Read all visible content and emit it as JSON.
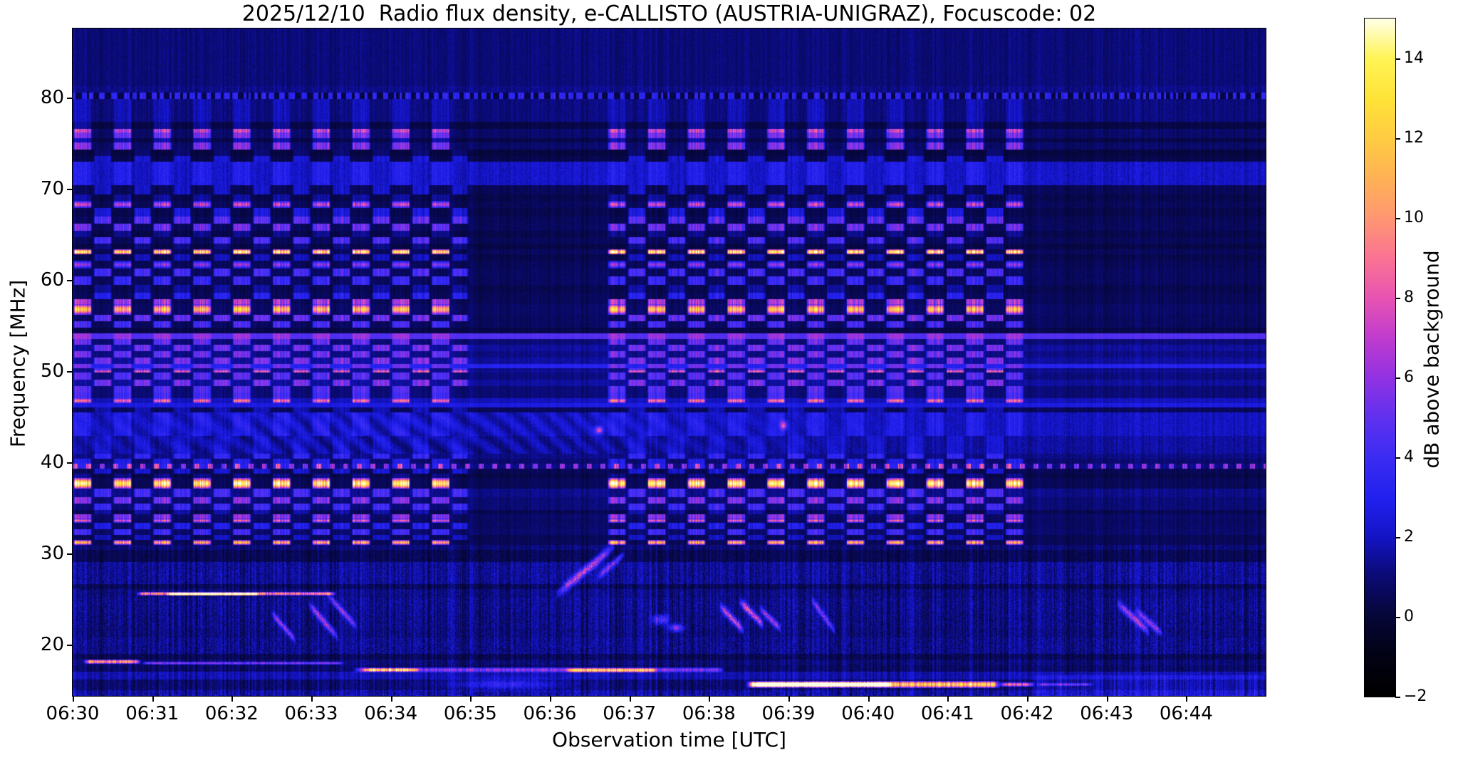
{
  "chart_data": {
    "type": "heatmap",
    "subtype": "radio-spectrogram",
    "title": "2025/12/10  Radio flux density, e-CALLISTO (AUSTRIA-UNIGRAZ), Focuscode: 02",
    "xlabel": "Observation time [UTC]",
    "ylabel": "Frequency [MHz]",
    "colorbar_label": "dB above background",
    "x_ticks": [
      "06:30",
      "06:31",
      "06:32",
      "06:33",
      "06:34",
      "06:35",
      "06:36",
      "06:37",
      "06:38",
      "06:39",
      "06:40",
      "06:41",
      "06:42",
      "06:43",
      "06:44"
    ],
    "y_ticks": [
      "80",
      "70",
      "60",
      "50",
      "40",
      "30",
      "20"
    ],
    "y_tick_values": [
      80,
      70,
      60,
      50,
      40,
      30,
      20
    ],
    "colorbar_ticks": [
      "14",
      "12",
      "10",
      "8",
      "6",
      "4",
      "2",
      "0",
      "−2"
    ],
    "colorbar_tick_values": [
      14,
      12,
      10,
      8,
      6,
      4,
      2,
      0,
      -2
    ],
    "time_range_utc": [
      "06:30:00",
      "06:45:00"
    ],
    "time_span_s": 900,
    "freq_range_mhz": [
      14.4,
      87.6
    ],
    "value_range_db": [
      -2,
      15
    ],
    "grid": false,
    "legend_position": "right-colorbar",
    "colormap_stops": [
      [
        0.0,
        "#000000"
      ],
      [
        0.06,
        "#020214"
      ],
      [
        0.12,
        "#06063a"
      ],
      [
        0.18,
        "#0b0b78"
      ],
      [
        0.235,
        "#1414c6"
      ],
      [
        0.29,
        "#2120ee"
      ],
      [
        0.353,
        "#3c2cf2"
      ],
      [
        0.412,
        "#6131ef"
      ],
      [
        0.47,
        "#9232e2"
      ],
      [
        0.53,
        "#c13cce"
      ],
      [
        0.588,
        "#e854b2"
      ],
      [
        0.647,
        "#fa7393"
      ],
      [
        0.706,
        "#ff9772"
      ],
      [
        0.765,
        "#ffb255"
      ],
      [
        0.824,
        "#ffcc42"
      ],
      [
        0.882,
        "#ffe338"
      ],
      [
        0.941,
        "#fff455"
      ],
      [
        1.0,
        "#ffffe8"
      ]
    ],
    "stripe_modulation": {
      "period_s": 30,
      "on_windows_s": [
        [
          0,
          298
        ],
        [
          403,
          718
        ]
      ],
      "phaseA_duty": [
        0.01,
        0.48
      ],
      "phaseB_duty": [
        0.52,
        0.98
      ]
    },
    "band_format": "[freq_hi_MHz, freq_lo_MHz, base_dB, pixel_noise_dB, column_noise_factor, stripe_phase(0=none,1=A,2=B), stripe_amp_dB, kind(0=plain,1=dashed80,2=dotline,3=wavy), profile(0=flat,1=peaked)]",
    "bands": [
      [
        87.6,
        81.3,
        1.05,
        0.3,
        0.45,
        0,
        0,
        0,
        0
      ],
      [
        81.3,
        80.6,
        1.25,
        0.45,
        0.55,
        0,
        0,
        0,
        0
      ],
      [
        80.6,
        79.9,
        0.3,
        0.35,
        0.4,
        0,
        2.6,
        1,
        0
      ],
      [
        79.9,
        77.4,
        1.1,
        0.32,
        0.5,
        1,
        0.8,
        0,
        0
      ],
      [
        77.4,
        76.6,
        0.25,
        0.2,
        0.25,
        1,
        1.2,
        0,
        0
      ],
      [
        76.6,
        76.2,
        0.85,
        0.3,
        0.45,
        1,
        6.3,
        0,
        0
      ],
      [
        76.2,
        75.6,
        0.8,
        0.3,
        0.45,
        1,
        4.6,
        0,
        0
      ],
      [
        75.6,
        75.1,
        0.3,
        0.22,
        0.3,
        1,
        1.5,
        0,
        0
      ],
      [
        75.1,
        74.3,
        0.8,
        0.3,
        0.45,
        1,
        4.8,
        0,
        0
      ],
      [
        74.3,
        73.6,
        0.15,
        0.18,
        0.25,
        2,
        0.8,
        0,
        0
      ],
      [
        73.6,
        73.0,
        0.35,
        0.25,
        0.35,
        2,
        2.0,
        0,
        0
      ],
      [
        73.0,
        70.4,
        2.1,
        0.5,
        0.55,
        1,
        0.9,
        0,
        0
      ],
      [
        70.4,
        69.4,
        0.55,
        0.3,
        0.45,
        2,
        1.6,
        0,
        0
      ],
      [
        69.4,
        68.7,
        0.35,
        0.25,
        0.35,
        1,
        1.2,
        0,
        0
      ],
      [
        68.7,
        67.9,
        0.55,
        0.3,
        0.4,
        1,
        6.8,
        0,
        1
      ],
      [
        67.9,
        67.0,
        0.35,
        0.25,
        0.4,
        2,
        2.2,
        0,
        0
      ],
      [
        67.0,
        66.2,
        0.55,
        0.28,
        0.4,
        2,
        4.2,
        0,
        0
      ],
      [
        66.2,
        65.4,
        0.6,
        0.28,
        0.4,
        1,
        4.6,
        0,
        0
      ],
      [
        65.4,
        64.7,
        0.35,
        0.22,
        0.35,
        1,
        1.0,
        0,
        0
      ],
      [
        64.7,
        64.0,
        0.55,
        0.25,
        0.38,
        2,
        3.8,
        0,
        0
      ],
      [
        64.0,
        63.4,
        0.25,
        0.2,
        0.3,
        2,
        1.0,
        0,
        0
      ],
      [
        63.4,
        62.8,
        0.6,
        0.28,
        0.4,
        1,
        13.2,
        0,
        1
      ],
      [
        62.8,
        62.1,
        0.35,
        0.22,
        0.35,
        2,
        1.6,
        0,
        0
      ],
      [
        62.1,
        61.3,
        0.55,
        0.28,
        0.4,
        1,
        5.4,
        0,
        1
      ],
      [
        61.3,
        60.4,
        0.65,
        0.3,
        0.42,
        2,
        3.6,
        0,
        0
      ],
      [
        60.4,
        59.5,
        0.65,
        0.3,
        0.42,
        1,
        3.2,
        0,
        0
      ],
      [
        59.5,
        58.6,
        0.4,
        0.25,
        0.38,
        2,
        1.2,
        0,
        0
      ],
      [
        58.6,
        57.9,
        0.55,
        0.26,
        0.4,
        2,
        2.6,
        0,
        0
      ],
      [
        57.9,
        57.4,
        0.55,
        0.26,
        0.4,
        1,
        6.0,
        0,
        0
      ],
      [
        57.4,
        56.2,
        0.75,
        0.3,
        0.42,
        1,
        10.8,
        0,
        1
      ],
      [
        56.2,
        55.5,
        0.65,
        0.28,
        0.42,
        2,
        4.4,
        0,
        0
      ],
      [
        55.5,
        54.8,
        0.65,
        0.28,
        0.42,
        1,
        3.6,
        0,
        0
      ],
      [
        54.8,
        54.2,
        0.3,
        0.22,
        0.32,
        0,
        0,
        0,
        0
      ],
      [
        54.2,
        53.5,
        4.6,
        0.3,
        0.3,
        1,
        1.6,
        0,
        0
      ],
      [
        53.5,
        52.9,
        1.0,
        0.28,
        0.4,
        1,
        4.0,
        0,
        0
      ],
      [
        52.9,
        52.2,
        1.5,
        0.3,
        0.42,
        2,
        3.8,
        0,
        0
      ],
      [
        52.2,
        51.5,
        1.2,
        0.3,
        0.42,
        1,
        4.0,
        0,
        0
      ],
      [
        51.5,
        50.8,
        1.5,
        0.3,
        0.42,
        2,
        4.0,
        0,
        0
      ],
      [
        50.8,
        50.35,
        3.1,
        0.28,
        0.35,
        1,
        2.2,
        0,
        0
      ],
      [
        50.35,
        50.1,
        1.2,
        0.26,
        0.38,
        2,
        3.4,
        0,
        0
      ],
      [
        50.1,
        49.85,
        1.4,
        0.26,
        0.38,
        2,
        6.4,
        0,
        0
      ],
      [
        49.85,
        49.1,
        1.1,
        0.28,
        0.4,
        1,
        3.6,
        0,
        0
      ],
      [
        49.1,
        48.35,
        1.5,
        0.3,
        0.42,
        2,
        4.0,
        0,
        0
      ],
      [
        48.35,
        47.65,
        1.0,
        0.28,
        0.4,
        1,
        3.6,
        0,
        0
      ],
      [
        47.65,
        47.05,
        1.0,
        0.28,
        0.4,
        1,
        3.2,
        0,
        0
      ],
      [
        47.05,
        46.5,
        1.9,
        0.28,
        0.38,
        1,
        7.0,
        0,
        1
      ],
      [
        46.5,
        46.05,
        2.6,
        0.26,
        0.32,
        0,
        0,
        0,
        0
      ],
      [
        46.05,
        45.5,
        0.6,
        0.26,
        0.38,
        2,
        1.2,
        0,
        0
      ],
      [
        45.5,
        42.9,
        2.0,
        0.45,
        0.5,
        1,
        1.0,
        3,
        0
      ],
      [
        42.9,
        41.0,
        1.55,
        0.45,
        0.52,
        2,
        0.8,
        3,
        0
      ],
      [
        41.0,
        40.4,
        1.2,
        0.3,
        0.45,
        2,
        2.4,
        0,
        0
      ],
      [
        40.4,
        39.9,
        0.9,
        0.28,
        0.42,
        1,
        2.0,
        0,
        0
      ],
      [
        39.9,
        39.35,
        1.2,
        0.3,
        0.45,
        1,
        2.0,
        2,
        0
      ],
      [
        39.35,
        38.75,
        0.5,
        0.26,
        0.42,
        2,
        1.8,
        0,
        0
      ],
      [
        38.75,
        38.3,
        0.3,
        0.24,
        0.38,
        1,
        1.0,
        0,
        0
      ],
      [
        38.3,
        37.1,
        0.55,
        0.28,
        0.4,
        1,
        13.6,
        0,
        1
      ],
      [
        37.1,
        36.2,
        1.25,
        0.32,
        0.48,
        2,
        3.0,
        0,
        0
      ],
      [
        36.2,
        35.5,
        1.0,
        0.3,
        0.45,
        1,
        4.6,
        0,
        0
      ],
      [
        35.5,
        34.8,
        1.0,
        0.3,
        0.45,
        2,
        3.0,
        0,
        0
      ],
      [
        34.8,
        34.3,
        0.45,
        0.26,
        0.4,
        2,
        1.2,
        0,
        0
      ],
      [
        34.3,
        33.85,
        0.8,
        0.28,
        0.42,
        1,
        5.0,
        0,
        0
      ],
      [
        33.85,
        33.4,
        0.7,
        0.28,
        0.42,
        1,
        7.6,
        0,
        1
      ],
      [
        33.4,
        32.7,
        0.75,
        0.3,
        0.45,
        2,
        2.2,
        0,
        0
      ],
      [
        32.7,
        32.05,
        0.85,
        0.3,
        0.45,
        1,
        3.2,
        0,
        0
      ],
      [
        32.05,
        31.5,
        0.5,
        0.26,
        0.42,
        2,
        1.5,
        0,
        0
      ],
      [
        31.5,
        30.95,
        0.55,
        0.26,
        0.4,
        1,
        10.5,
        0,
        1
      ],
      [
        30.95,
        30.4,
        1.0,
        0.5,
        0.7,
        0,
        0,
        0,
        0
      ],
      [
        30.4,
        29.1,
        0.5,
        0.45,
        0.7,
        0,
        0,
        0,
        0
      ],
      [
        29.1,
        26.7,
        1.45,
        0.8,
        1.0,
        0,
        0,
        0,
        0
      ],
      [
        26.7,
        26.1,
        0.6,
        0.6,
        1.0,
        0,
        0,
        0,
        0
      ],
      [
        26.1,
        25.2,
        1.15,
        0.7,
        1.0,
        0,
        0,
        0,
        0
      ],
      [
        25.2,
        23.6,
        1.3,
        0.8,
        1.1,
        0,
        0,
        0,
        0
      ],
      [
        23.6,
        21.8,
        1.2,
        0.8,
        1.1,
        0,
        0,
        0,
        0
      ],
      [
        21.8,
        20.8,
        1.1,
        0.7,
        1.0,
        0,
        0,
        0,
        0
      ],
      [
        20.8,
        19.0,
        1.3,
        0.9,
        1.0,
        0,
        0,
        0,
        0
      ],
      [
        19.0,
        18.35,
        0.55,
        0.5,
        0.8,
        0,
        0,
        0,
        0
      ],
      [
        18.35,
        17.75,
        1.0,
        0.6,
        0.9,
        0,
        0,
        0,
        0
      ],
      [
        17.75,
        17.05,
        0.8,
        0.5,
        0.9,
        0,
        0,
        0,
        0
      ],
      [
        17.05,
        16.2,
        1.8,
        0.5,
        0.9,
        0,
        0,
        0,
        0
      ],
      [
        16.2,
        15.0,
        0.9,
        0.5,
        1.0,
        0,
        0,
        0,
        0
      ],
      [
        15.0,
        14.4,
        1.6,
        1.0,
        1.2,
        0,
        0,
        0,
        0
      ]
    ],
    "features": [
      {
        "k": "hline",
        "t0": 48,
        "t1": 199,
        "f0": 25.85,
        "f1": 25.35,
        "a": 8.5
      },
      {
        "k": "hline",
        "t0": 70,
        "t1": 142,
        "f0": 25.75,
        "f1": 25.4,
        "a": 11.0
      },
      {
        "k": "hline",
        "t0": 8,
        "t1": 52,
        "f0": 18.4,
        "f1": 17.85,
        "a": 9.8
      },
      {
        "k": "hline",
        "t0": 52,
        "t1": 205,
        "f0": 18.2,
        "f1": 17.8,
        "a": 4.6
      },
      {
        "k": "hline",
        "t0": 212,
        "t1": 492,
        "f0": 17.55,
        "f1": 16.95,
        "a": 5.2
      },
      {
        "k": "hline",
        "t0": 218,
        "t1": 262,
        "f0": 17.5,
        "f1": 17.0,
        "a": 7.6
      },
      {
        "k": "hline",
        "t0": 372,
        "t1": 442,
        "f0": 17.45,
        "f1": 16.95,
        "a": 7.2
      },
      {
        "k": "blob",
        "t": 325,
        "f": 15.7,
        "a": 2.8,
        "wt": 38,
        "wf": 0.55
      },
      {
        "k": "hline",
        "t0": 508,
        "t1": 700,
        "f0": 16.05,
        "f1": 15.2,
        "a": 11.5
      },
      {
        "k": "hline",
        "t0": 512,
        "t1": 618,
        "f0": 15.9,
        "f1": 15.35,
        "a": 14.2
      },
      {
        "k": "hline",
        "t0": 698,
        "t1": 726,
        "f0": 15.95,
        "f1": 15.35,
        "a": 7.5
      },
      {
        "k": "hline",
        "t0": 726,
        "t1": 770,
        "f0": 15.85,
        "f1": 15.45,
        "a": 4.0
      },
      {
        "k": "rect",
        "t0": 722,
        "t1": 900,
        "f0": 16.6,
        "f1": 14.4,
        "a": 1.1
      },
      {
        "k": "diag",
        "t0": 150,
        "f0": 23.5,
        "t1": 168,
        "f1": 20.5,
        "a": 4.5,
        "w": 0.4
      },
      {
        "k": "diag",
        "t0": 178,
        "f0": 24.5,
        "t1": 200,
        "f1": 20.8,
        "a": 5.0,
        "w": 0.45
      },
      {
        "k": "diag",
        "t0": 192,
        "f0": 25.5,
        "t1": 214,
        "f1": 22.0,
        "a": 4.5,
        "w": 0.4
      },
      {
        "k": "diag",
        "t0": 365,
        "f0": 25.6,
        "t1": 408,
        "f1": 30.8,
        "a": 5.5,
        "w": 0.5
      },
      {
        "k": "diag",
        "t0": 396,
        "f0": 27.5,
        "t1": 416,
        "f1": 30.0,
        "a": 4.0,
        "w": 0.4
      },
      {
        "k": "blob",
        "t": 397,
        "f": 43.6,
        "a": 6.0,
        "wt": 3,
        "wf": 0.4
      },
      {
        "k": "blob",
        "t": 536,
        "f": 44.1,
        "a": 5.0,
        "wt": 2.5,
        "wf": 0.45
      },
      {
        "k": "diag",
        "t0": 488,
        "f0": 24.3,
        "t1": 506,
        "f1": 21.6,
        "a": 6.0,
        "w": 0.45
      },
      {
        "k": "diag",
        "t0": 503,
        "f0": 24.8,
        "t1": 521,
        "f1": 22.2,
        "a": 6.5,
        "w": 0.45
      },
      {
        "k": "diag",
        "t0": 518,
        "f0": 24.0,
        "t1": 534,
        "f1": 21.8,
        "a": 5.0,
        "w": 0.4
      },
      {
        "k": "diag",
        "t0": 557,
        "f0": 25.0,
        "t1": 575,
        "f1": 21.5,
        "a": 4.0,
        "w": 0.4
      },
      {
        "k": "diag",
        "t0": 788,
        "f0": 24.6,
        "t1": 812,
        "f1": 21.4,
        "a": 5.0,
        "w": 0.45
      },
      {
        "k": "diag",
        "t0": 802,
        "f0": 23.8,
        "t1": 822,
        "f1": 21.2,
        "a": 4.5,
        "w": 0.4
      },
      {
        "k": "blob",
        "t": 443,
        "f": 22.8,
        "a": 4.0,
        "wt": 6,
        "wf": 0.5
      },
      {
        "k": "blob",
        "t": 455,
        "f": 21.9,
        "a": 4.5,
        "wt": 5,
        "wf": 0.4
      }
    ]
  }
}
